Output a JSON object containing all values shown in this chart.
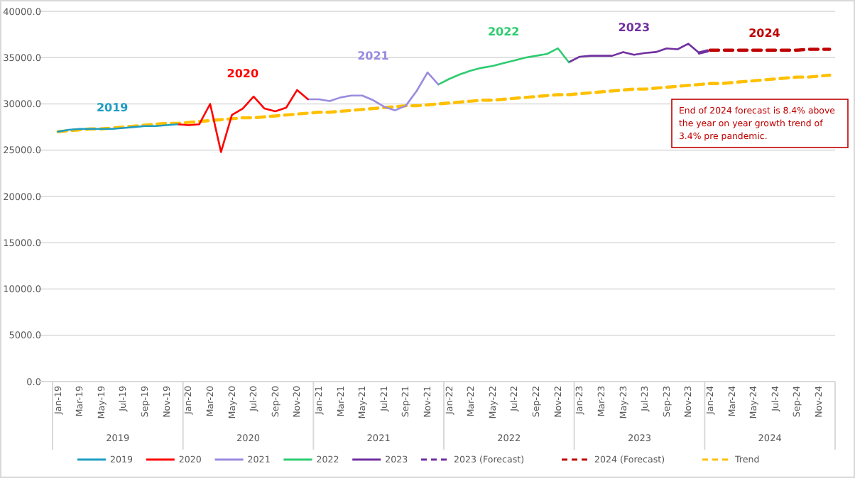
{
  "chart_data": {
    "type": "line",
    "categories": [
      "Jan-19",
      null,
      "Mar-19",
      null,
      "May-19",
      null,
      "Jul-19",
      null,
      "Sep-19",
      null,
      "Nov-19",
      null,
      "Jan-20",
      null,
      "Mar-20",
      null,
      "May-20",
      null,
      "Jul-20",
      null,
      "Sep-20",
      null,
      "Nov-20",
      null,
      "Jan-21",
      null,
      "Mar-21",
      null,
      "May-21",
      null,
      "Jul-21",
      null,
      "Sep-21",
      null,
      "Nov-21",
      null,
      "Jan-22",
      null,
      "Mar-22",
      null,
      "May-22",
      null,
      "Jul-22",
      null,
      "Sep-22",
      null,
      "Nov-22",
      null,
      "Jan-23",
      null,
      "Mar-23",
      null,
      "May-23",
      null,
      "Jul-23",
      null,
      "Sep-23",
      null,
      "Nov-23",
      null,
      "Jan-24",
      null,
      "Mar-24",
      null,
      "May-24",
      null,
      "Jul-24",
      null,
      "Sep-24",
      null,
      "Nov-24",
      null
    ],
    "series": [
      {
        "name": "2019",
        "color": "#1f9dc4",
        "values": [
          27000,
          27200,
          27300,
          27300,
          27300,
          27300,
          27400,
          27500,
          27600,
          27600,
          27700,
          27800,
          null,
          null,
          null,
          null,
          null,
          null,
          null,
          null,
          null,
          null,
          null,
          null,
          null,
          null,
          null,
          null,
          null,
          null,
          null,
          null,
          null,
          null,
          null,
          null,
          null,
          null,
          null,
          null,
          null,
          null,
          null,
          null,
          null,
          null,
          null,
          null,
          null,
          null,
          null,
          null,
          null,
          null,
          null,
          null,
          null,
          null,
          null,
          null,
          null,
          null,
          null,
          null,
          null,
          null,
          null,
          null,
          null,
          null,
          null,
          null
        ]
      },
      {
        "name": "2020",
        "color": "#ff0000",
        "values": [
          null,
          null,
          null,
          null,
          null,
          null,
          null,
          null,
          null,
          null,
          null,
          27800,
          27700,
          27800,
          30000,
          24800,
          28800,
          29500,
          30800,
          29500,
          29200,
          29600,
          31500,
          30500,
          null,
          null,
          null,
          null,
          null,
          null,
          null,
          null,
          null,
          null,
          null,
          null,
          null,
          null,
          null,
          null,
          null,
          null,
          null,
          null,
          null,
          null,
          null,
          null,
          null,
          null,
          null,
          null,
          null,
          null,
          null,
          null,
          null,
          null,
          null,
          null,
          null,
          null,
          null,
          null,
          null,
          null,
          null,
          null,
          null,
          null,
          null,
          null
        ]
      },
      {
        "name": "2021",
        "color": "#9b8be0",
        "values": [
          null,
          null,
          null,
          null,
          null,
          null,
          null,
          null,
          null,
          null,
          null,
          null,
          null,
          null,
          null,
          null,
          null,
          null,
          null,
          null,
          null,
          null,
          null,
          30500,
          30500,
          30300,
          30700,
          30900,
          30900,
          30400,
          29700,
          29300,
          29800,
          31400,
          33400,
          32100,
          null,
          null,
          null,
          null,
          null,
          null,
          null,
          null,
          null,
          null,
          null,
          null,
          null,
          null,
          null,
          null,
          null,
          null,
          null,
          null,
          null,
          null,
          null,
          null,
          null,
          null,
          null,
          null,
          null,
          null,
          null,
          null,
          null,
          null,
          null,
          null
        ]
      },
      {
        "name": "2022",
        "color": "#2ecc71",
        "values": [
          null,
          null,
          null,
          null,
          null,
          null,
          null,
          null,
          null,
          null,
          null,
          null,
          null,
          null,
          null,
          null,
          null,
          null,
          null,
          null,
          null,
          null,
          null,
          null,
          null,
          null,
          null,
          null,
          null,
          null,
          null,
          null,
          null,
          null,
          null,
          32100,
          32700,
          33200,
          33600,
          33900,
          34100,
          34400,
          34700,
          35000,
          35200,
          35400,
          36000,
          34500,
          null,
          null,
          null,
          null,
          null,
          null,
          null,
          null,
          null,
          null,
          null,
          null,
          null,
          null,
          null,
          null,
          null,
          null,
          null,
          null,
          null,
          null,
          null,
          null
        ]
      },
      {
        "name": "2023",
        "color": "#7030a0",
        "values": [
          null,
          null,
          null,
          null,
          null,
          null,
          null,
          null,
          null,
          null,
          null,
          null,
          null,
          null,
          null,
          null,
          null,
          null,
          null,
          null,
          null,
          null,
          null,
          null,
          null,
          null,
          null,
          null,
          null,
          null,
          null,
          null,
          null,
          null,
          null,
          null,
          null,
          null,
          null,
          null,
          null,
          null,
          null,
          null,
          null,
          null,
          null,
          34500,
          35100,
          35200,
          35200,
          35200,
          35600,
          35300,
          35500,
          35600,
          36000,
          35900,
          36500,
          35500,
          null,
          null,
          null,
          null,
          null,
          null,
          null,
          null,
          null,
          null,
          null,
          null
        ]
      },
      {
        "name": "2023 (Forecast)",
        "color": "#7030a0",
        "line_style": "dashed",
        "values": [
          null,
          null,
          null,
          null,
          null,
          null,
          null,
          null,
          null,
          null,
          null,
          null,
          null,
          null,
          null,
          null,
          null,
          null,
          null,
          null,
          null,
          null,
          null,
          null,
          null,
          null,
          null,
          null,
          null,
          null,
          null,
          null,
          null,
          null,
          null,
          null,
          null,
          null,
          null,
          null,
          null,
          null,
          null,
          null,
          null,
          null,
          null,
          null,
          null,
          null,
          null,
          null,
          null,
          null,
          null,
          null,
          null,
          null,
          null,
          35500,
          35800,
          null,
          null,
          null,
          null,
          null,
          null,
          null,
          null,
          null,
          null,
          null
        ]
      },
      {
        "name": "2024 (Forecast)",
        "color": "#c00000",
        "line_style": "dashed",
        "values": [
          null,
          null,
          null,
          null,
          null,
          null,
          null,
          null,
          null,
          null,
          null,
          null,
          null,
          null,
          null,
          null,
          null,
          null,
          null,
          null,
          null,
          null,
          null,
          null,
          null,
          null,
          null,
          null,
          null,
          null,
          null,
          null,
          null,
          null,
          null,
          null,
          null,
          null,
          null,
          null,
          null,
          null,
          null,
          null,
          null,
          null,
          null,
          null,
          null,
          null,
          null,
          null,
          null,
          null,
          null,
          null,
          null,
          null,
          null,
          null,
          35800,
          35800,
          35800,
          35800,
          35800,
          35800,
          35800,
          35800,
          35800,
          35900,
          35900,
          35900
        ]
      },
      {
        "name": "Trend",
        "color": "#ffc000",
        "line_style": "dashed",
        "values": [
          27000,
          27100,
          27200,
          27300,
          27300,
          27400,
          27500,
          27600,
          27700,
          27800,
          27900,
          27900,
          28000,
          28100,
          28200,
          28300,
          28400,
          28500,
          28500,
          28600,
          28700,
          28800,
          28900,
          29000,
          29100,
          29100,
          29200,
          29300,
          29400,
          29500,
          29600,
          29700,
          29800,
          29800,
          29900,
          30000,
          30100,
          30200,
          30300,
          30400,
          30400,
          30500,
          30600,
          30700,
          30800,
          30900,
          31000,
          31000,
          31100,
          31200,
          31300,
          31400,
          31500,
          31600,
          31600,
          31700,
          31800,
          31900,
          32000,
          32100,
          32200,
          32200,
          32300,
          32400,
          32500,
          32600,
          32700,
          32800,
          32900,
          32900,
          33000,
          33100
        ]
      }
    ],
    "ylim": [
      0,
      40000
    ],
    "yticks": [
      {
        "value": 0,
        "label": "0.0"
      },
      {
        "value": 5000,
        "label": "5000.0"
      },
      {
        "value": 10000,
        "label": "10000.0"
      },
      {
        "value": 15000,
        "label": "15000.0"
      },
      {
        "value": 20000,
        "label": "20000.0"
      },
      {
        "value": 25000,
        "label": "25000.0"
      },
      {
        "value": 30000,
        "label": "30000.0"
      },
      {
        "value": 35000,
        "label": "35000.0"
      },
      {
        "value": 40000,
        "label": "40000.0"
      }
    ],
    "annotations": [
      "End of 2024 forecast is 8.4% above the year on year growth trend of 3.4% pre pandemic.",
      "2019",
      "2020",
      "2021",
      "2022",
      "2023",
      "2024",
      "2019",
      "2020",
      "2021",
      "2022",
      "2023",
      "2024"
    ],
    "grid": "y",
    "legend": "bottom",
    "line_style": "solid",
    "marker": "none"
  }
}
